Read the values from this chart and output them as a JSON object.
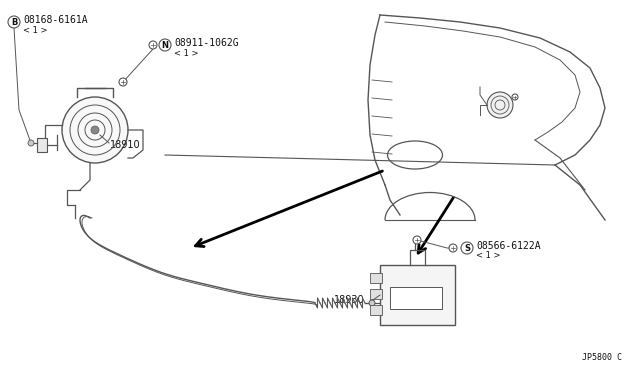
{
  "bg_color": "#ffffff",
  "fig_width": 6.4,
  "fig_height": 3.72,
  "dpi": 100,
  "labels": {
    "B_part": "08168-6161A",
    "B_qty": "< 1 >",
    "N_part": "08911-1062G",
    "N_qty": "< 1 >",
    "S_part": "08566-6122A",
    "S_qty": "< 1 >",
    "part_18910": "18910",
    "part_18930": "18930",
    "diagram_id": "JP5800 C"
  },
  "colors": {
    "line": "#555555",
    "text": "#111111",
    "bg": "#ffffff"
  },
  "font_size": 7.0,
  "small_font": 6.0
}
